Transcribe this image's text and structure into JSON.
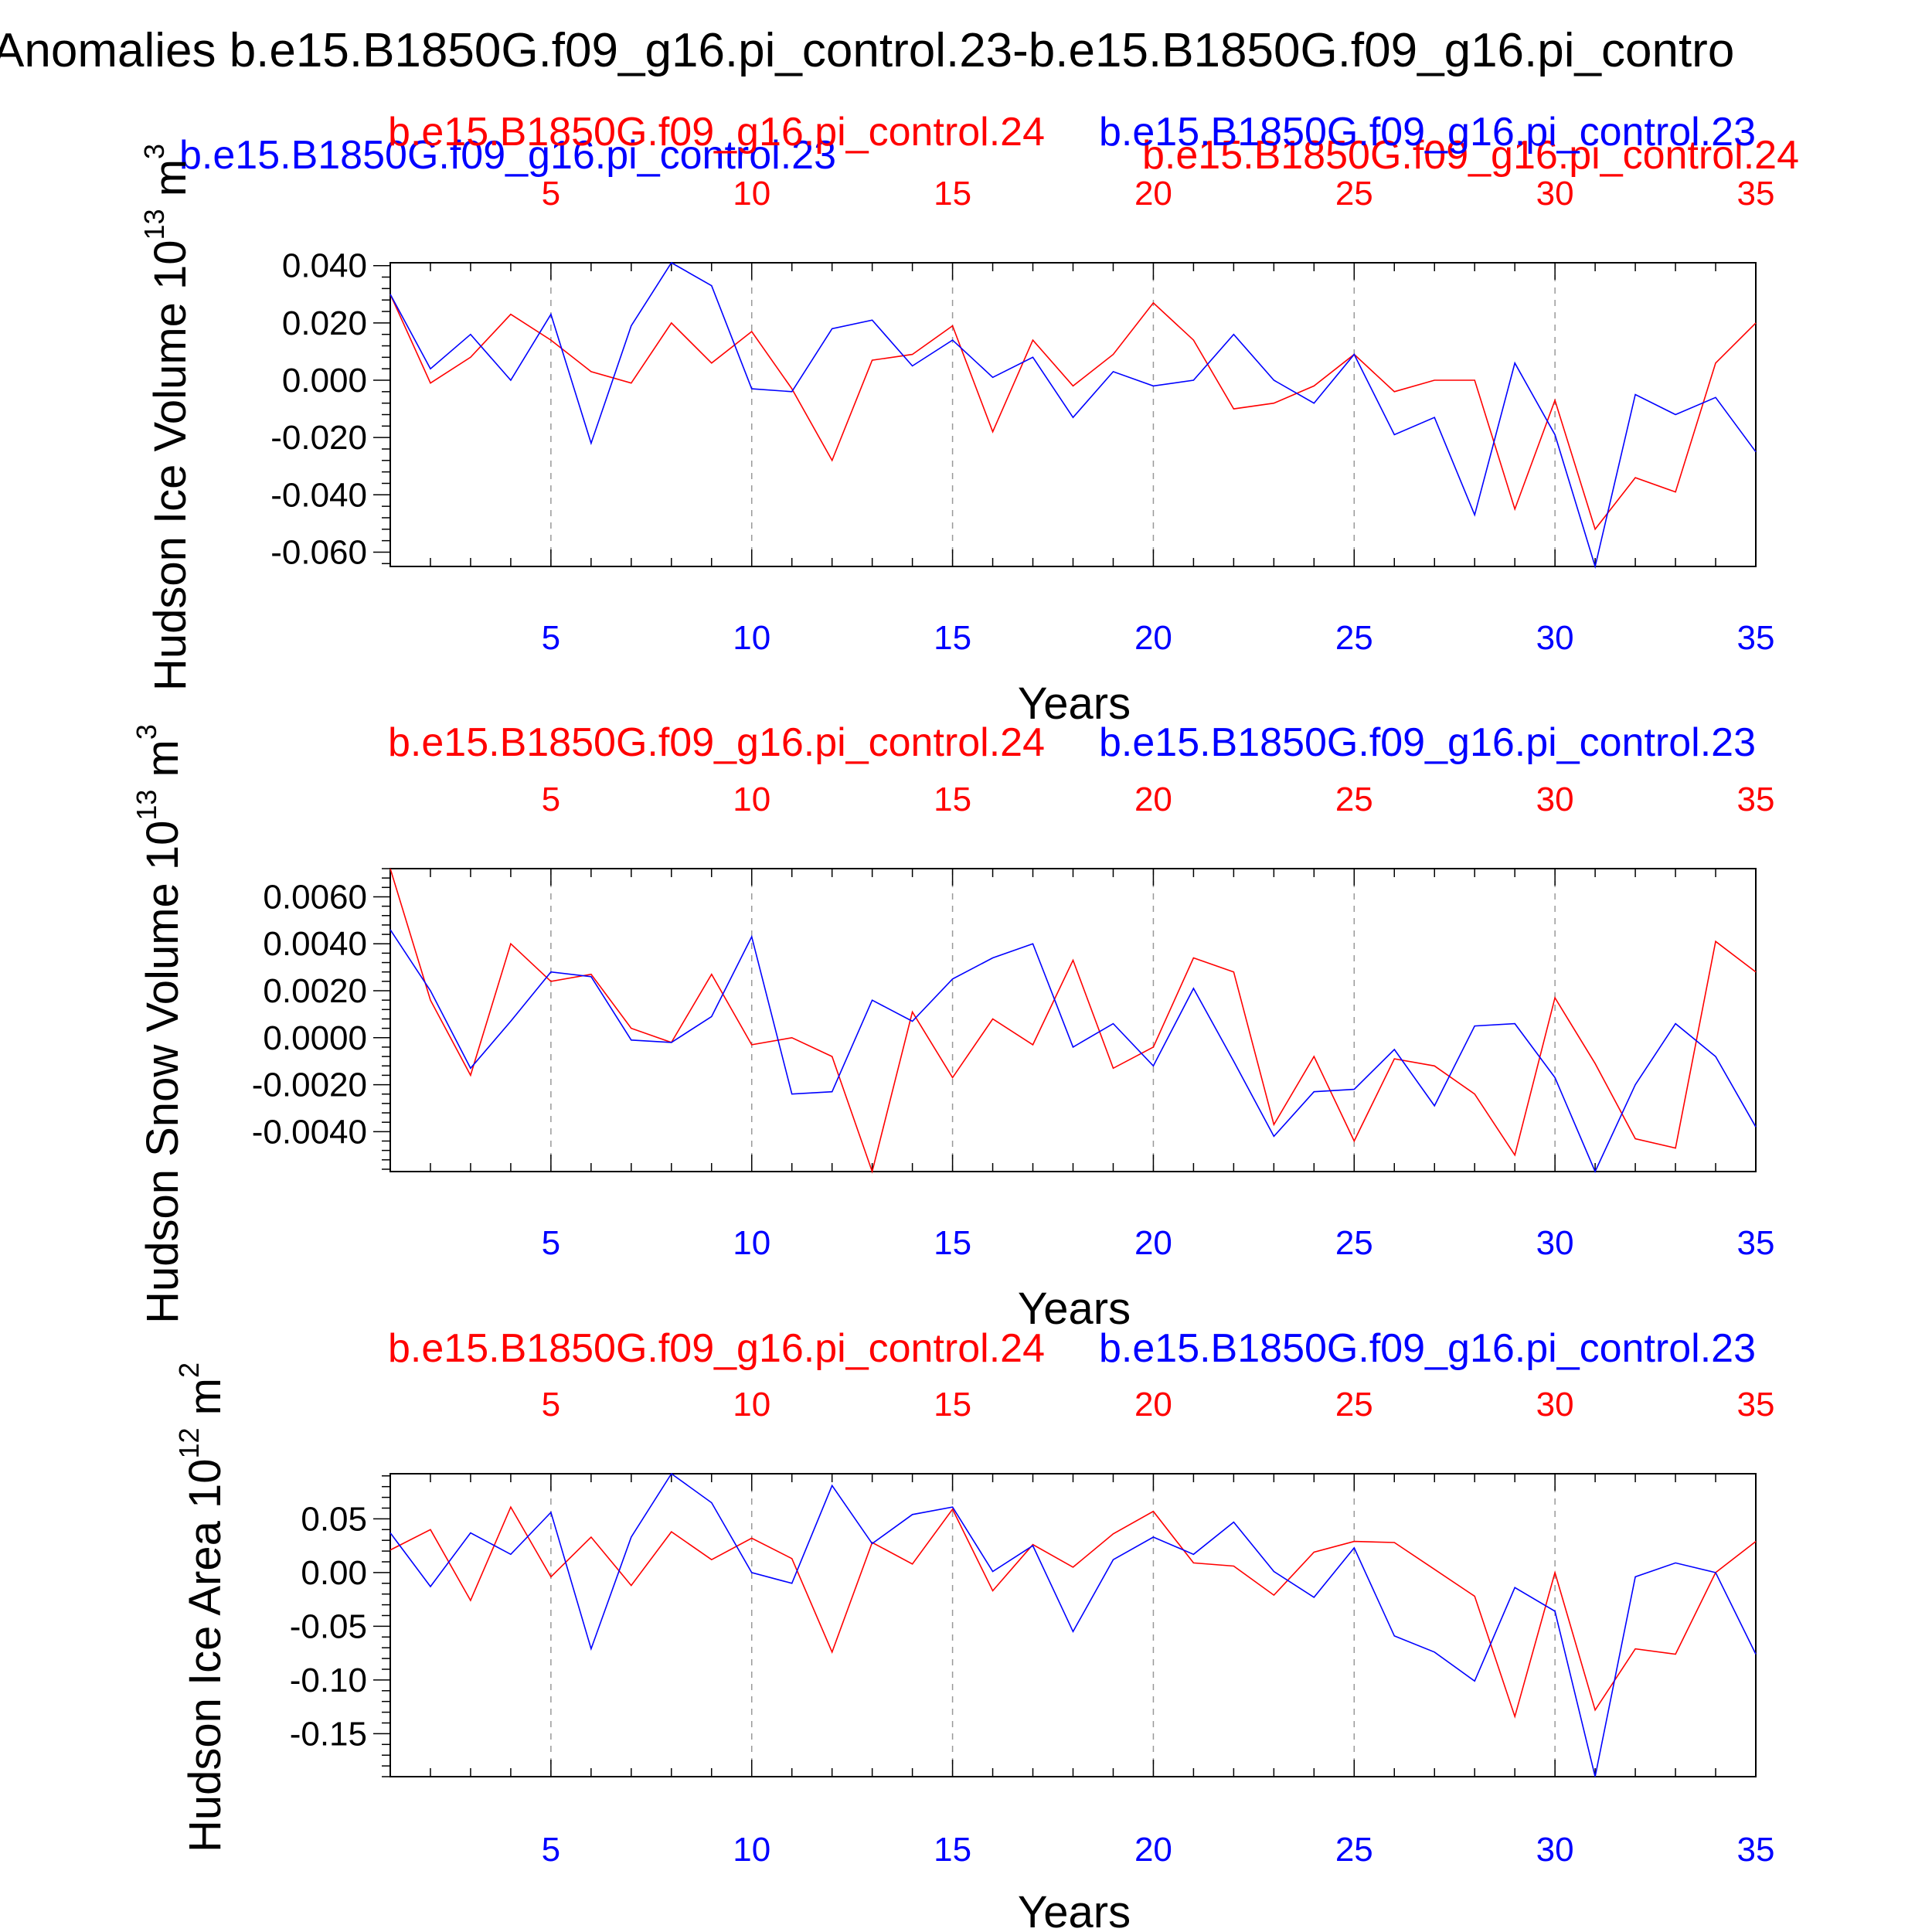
{
  "figure": {
    "title": "Anomalies b.e15.B1850G.f09_g16.pi_control.23-b.e15.B1850G.f09_g16.pi_contro"
  },
  "colors": {
    "series_a": "#ff0000",
    "series_b": "#0000ff",
    "axis": "#000000",
    "grid": "#999999"
  },
  "chart_data": [
    {
      "type": "line",
      "ylabel": "Hudson Ice Volume 10",
      "ylabel_exp": "13",
      "ylabel_unit": " m",
      "ylabel_unit_exp": "3",
      "xlabel": "Years",
      "top_label_red": "b.e15.B1850G.f09_g16.pi_control.24",
      "top_label_blue": "b.e15.B1850G.f09_g16.pi_control.23",
      "extra_label_blue_left": "b.e15.B1850G.f09_g16.pi_control.23",
      "extra_label_red_right": "b.e15.B1850G.f09_g16.pi_control.24",
      "xlim": [
        1,
        35
      ],
      "ylim": [
        -0.065,
        0.041
      ],
      "yticks": [
        "0.040",
        "0.020",
        "0.000",
        "-0.020",
        "-0.040",
        "-0.060"
      ],
      "ytick_values": [
        0.04,
        0.02,
        0.0,
        -0.02,
        -0.04,
        -0.06
      ],
      "xticks": [
        "5",
        "10",
        "15",
        "20",
        "25",
        "30",
        "35"
      ],
      "xtick_values": [
        5,
        10,
        15,
        20,
        25,
        30,
        35
      ],
      "x": [
        1,
        2,
        3,
        4,
        5,
        6,
        7,
        8,
        9,
        10,
        11,
        12,
        13,
        14,
        15,
        16,
        17,
        18,
        19,
        20,
        21,
        22,
        23,
        24,
        25,
        26,
        27,
        28,
        29,
        30,
        31,
        32,
        33,
        34,
        35
      ],
      "series": [
        {
          "name": "b.e15.B1850G.f09_g16.pi_control.24",
          "color": "#ff0000",
          "values": [
            0.03,
            -0.001,
            0.008,
            0.023,
            0.014,
            0.003,
            -0.001,
            0.02,
            0.006,
            0.017,
            -0.003,
            -0.028,
            0.007,
            0.009,
            0.019,
            -0.018,
            0.014,
            -0.002,
            0.009,
            0.027,
            0.014,
            -0.01,
            -0.008,
            -0.002,
            0.009,
            -0.004,
            0.0,
            0.0,
            -0.045,
            -0.007,
            -0.052,
            -0.034,
            -0.039,
            0.006,
            0.02
          ]
        },
        {
          "name": "b.e15.B1850G.f09_g16.pi_control.23",
          "color": "#0000ff",
          "values": [
            0.03,
            0.004,
            0.016,
            0.0,
            0.023,
            -0.022,
            0.019,
            0.041,
            0.033,
            -0.003,
            -0.004,
            0.018,
            0.021,
            0.005,
            0.014,
            0.001,
            0.008,
            -0.013,
            0.003,
            -0.002,
            0.0,
            0.016,
            0.0,
            -0.008,
            0.009,
            -0.019,
            -0.013,
            -0.047,
            0.006,
            -0.019,
            -0.065,
            -0.005,
            -0.012,
            -0.006,
            -0.025
          ]
        }
      ]
    },
    {
      "type": "line",
      "ylabel": "Hudson Snow Volume 10",
      "ylabel_exp": "13",
      "ylabel_unit": " m",
      "ylabel_unit_exp": "3",
      "xlabel": "Years",
      "top_label_red": "b.e15.B1850G.f09_g16.pi_control.24",
      "top_label_blue": "b.e15.B1850G.f09_g16.pi_control.23",
      "xlim": [
        1,
        35
      ],
      "ylim": [
        -0.0057,
        0.0072
      ],
      "yticks": [
        "0.0060",
        "0.0040",
        "0.0020",
        "0.0000",
        "-0.0020",
        "-0.0040"
      ],
      "ytick_values": [
        0.006,
        0.004,
        0.002,
        0.0,
        -0.002,
        -0.004
      ],
      "xticks": [
        "5",
        "10",
        "15",
        "20",
        "25",
        "30",
        "35"
      ],
      "xtick_values": [
        5,
        10,
        15,
        20,
        25,
        30,
        35
      ],
      "x": [
        1,
        2,
        3,
        4,
        5,
        6,
        7,
        8,
        9,
        10,
        11,
        12,
        13,
        14,
        15,
        16,
        17,
        18,
        19,
        20,
        21,
        22,
        23,
        24,
        25,
        26,
        27,
        28,
        29,
        30,
        31,
        32,
        33,
        34,
        35
      ],
      "series": [
        {
          "name": "b.e15.B1850G.f09_g16.pi_control.24",
          "color": "#ff0000",
          "values": [
            0.0072,
            0.0016,
            -0.0016,
            0.004,
            0.0024,
            0.0027,
            0.0004,
            -0.0002,
            0.0027,
            -0.0003,
            0.0,
            -0.0008,
            -0.0057,
            0.0011,
            -0.0017,
            0.0008,
            -0.0003,
            0.0033,
            -0.0013,
            -0.0004,
            0.0034,
            0.0028,
            -0.0037,
            -0.0008,
            -0.0044,
            -0.0009,
            -0.0012,
            -0.0024,
            -0.005,
            0.0017,
            -0.0011,
            -0.0043,
            -0.0047,
            0.0041,
            0.0028
          ]
        },
        {
          "name": "b.e15.B1850G.f09_g16.pi_control.23",
          "color": "#0000ff",
          "values": [
            0.0046,
            0.002,
            -0.0013,
            0.0007,
            0.0028,
            0.0026,
            -0.0001,
            -0.0002,
            0.0009,
            0.0043,
            -0.0024,
            -0.0023,
            0.0016,
            0.0007,
            0.0025,
            0.0034,
            0.004,
            -0.0004,
            0.0006,
            -0.0012,
            0.0021,
            -0.001,
            -0.0042,
            -0.0023,
            -0.0022,
            -0.0005,
            -0.0029,
            0.0005,
            0.0006,
            -0.0017,
            -0.0057,
            -0.002,
            0.0006,
            -0.0008,
            -0.0038
          ]
        }
      ]
    },
    {
      "type": "line",
      "ylabel": "Hudson Ice Area 10",
      "ylabel_exp": "12",
      "ylabel_unit": " m",
      "ylabel_unit_exp": "2",
      "xlabel": "Years",
      "top_label_red": "b.e15.B1850G.f09_g16.pi_control.24",
      "top_label_blue": "b.e15.B1850G.f09_g16.pi_control.23",
      "xlim": [
        1,
        35
      ],
      "ylim": [
        -0.19,
        0.092
      ],
      "yticks": [
        "0.05",
        "0.00",
        "-0.05",
        "-0.10",
        "-0.15"
      ],
      "ytick_values": [
        0.05,
        0.0,
        -0.05,
        -0.1,
        -0.15
      ],
      "xticks": [
        "5",
        "10",
        "15",
        "20",
        "25",
        "30",
        "35"
      ],
      "xtick_values": [
        5,
        10,
        15,
        20,
        25,
        30,
        35
      ],
      "x": [
        1,
        2,
        3,
        4,
        5,
        6,
        7,
        8,
        9,
        10,
        11,
        12,
        13,
        14,
        15,
        16,
        17,
        18,
        19,
        20,
        21,
        22,
        23,
        24,
        25,
        26,
        27,
        28,
        29,
        30,
        31,
        32,
        33,
        34,
        35
      ],
      "series": [
        {
          "name": "b.e15.B1850G.f09_g16.pi_control.24",
          "color": "#ff0000",
          "values": [
            0.021,
            0.04,
            -0.026,
            0.061,
            -0.004,
            0.033,
            -0.012,
            0.038,
            0.012,
            0.032,
            0.013,
            -0.074,
            0.028,
            0.008,
            0.059,
            -0.017,
            0.026,
            0.005,
            0.036,
            0.057,
            0.009,
            0.006,
            -0.021,
            0.019,
            0.029,
            0.028,
            0.003,
            -0.022,
            -0.134,
            0.0,
            -0.128,
            -0.071,
            -0.076,
            0.0,
            0.029
          ]
        },
        {
          "name": "b.e15.B1850G.f09_g16.pi_control.23",
          "color": "#0000ff",
          "values": [
            0.037,
            -0.013,
            0.037,
            0.017,
            0.056,
            -0.071,
            0.033,
            0.092,
            0.065,
            0.0,
            -0.01,
            0.081,
            0.027,
            0.054,
            0.061,
            0.001,
            0.025,
            -0.055,
            0.012,
            0.033,
            0.017,
            0.047,
            0.001,
            -0.023,
            0.023,
            -0.059,
            -0.074,
            -0.101,
            -0.014,
            -0.036,
            -0.19,
            -0.004,
            0.009,
            0.0,
            -0.076
          ]
        }
      ]
    }
  ]
}
